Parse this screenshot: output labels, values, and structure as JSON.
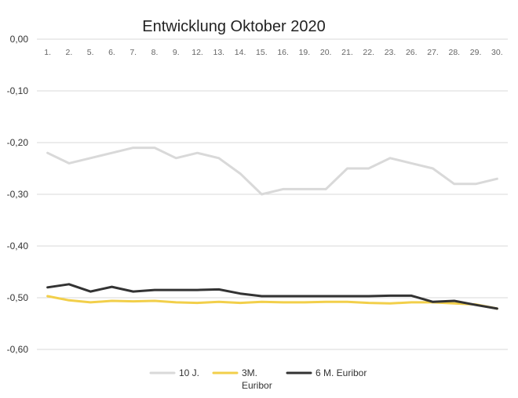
{
  "chart_data": {
    "type": "line",
    "title": "Entwicklung Oktober 2020",
    "xlabel": "",
    "ylabel": "",
    "categories": [
      "1.",
      "2.",
      "5.",
      "6.",
      "7.",
      "8.",
      "9.",
      "12.",
      "13.",
      "14.",
      "15.",
      "16.",
      "19.",
      "20.",
      "21.",
      "22.",
      "23.",
      "26.",
      "27.",
      "28.",
      "29.",
      "30."
    ],
    "y_ticks": [
      "0,00",
      "-0,10",
      "-0,20",
      "-0,30",
      "-0,40",
      "-0,50",
      "-0,60"
    ],
    "ylim": [
      -0.6,
      0.0
    ],
    "grid": true,
    "legend_position": "bottom",
    "series": [
      {
        "name": "10 J.",
        "color": "#d9d9d9",
        "values": [
          -0.22,
          -0.24,
          -0.23,
          -0.22,
          -0.21,
          -0.21,
          -0.23,
          -0.22,
          -0.23,
          -0.26,
          -0.3,
          -0.29,
          -0.29,
          -0.29,
          -0.25,
          -0.25,
          -0.23,
          -0.24,
          -0.25,
          -0.28,
          -0.28,
          -0.27
        ]
      },
      {
        "name": "3M. Euribor",
        "name_lines": [
          "3M.",
          "Euribor"
        ],
        "color": "#f2cf4a",
        "values": [
          -0.497,
          -0.505,
          -0.509,
          -0.506,
          -0.507,
          -0.506,
          -0.509,
          -0.51,
          -0.508,
          -0.51,
          -0.508,
          -0.509,
          -0.509,
          -0.508,
          -0.508,
          -0.51,
          -0.511,
          -0.509,
          -0.509,
          -0.511,
          -0.513,
          -0.521
        ]
      },
      {
        "name": "6 M. Euribor",
        "color": "#333333",
        "values": [
          -0.48,
          -0.474,
          -0.488,
          -0.479,
          -0.488,
          -0.485,
          -0.485,
          -0.485,
          -0.484,
          -0.492,
          -0.497,
          -0.497,
          -0.497,
          -0.497,
          -0.497,
          -0.497,
          -0.496,
          -0.496,
          -0.508,
          -0.506,
          -0.514,
          -0.521
        ]
      }
    ]
  }
}
